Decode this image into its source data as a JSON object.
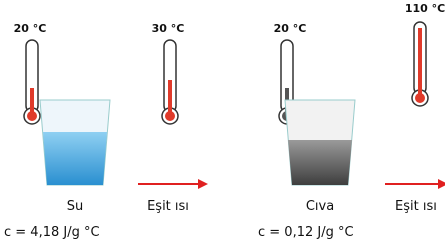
{
  "panels": [
    {
      "start_temp": "20 °C",
      "end_temp": "30 °C",
      "liquid": "Su",
      "arrow_label": "Eşit ısı",
      "specific_heat": "c = 4,18 J/g °C"
    },
    {
      "start_temp": "20 °C",
      "end_temp": "110 °C",
      "liquid": "Cıva",
      "arrow_label": "Eşit ısı",
      "specific_heat": "c = 0,12 J/g °C"
    }
  ]
}
